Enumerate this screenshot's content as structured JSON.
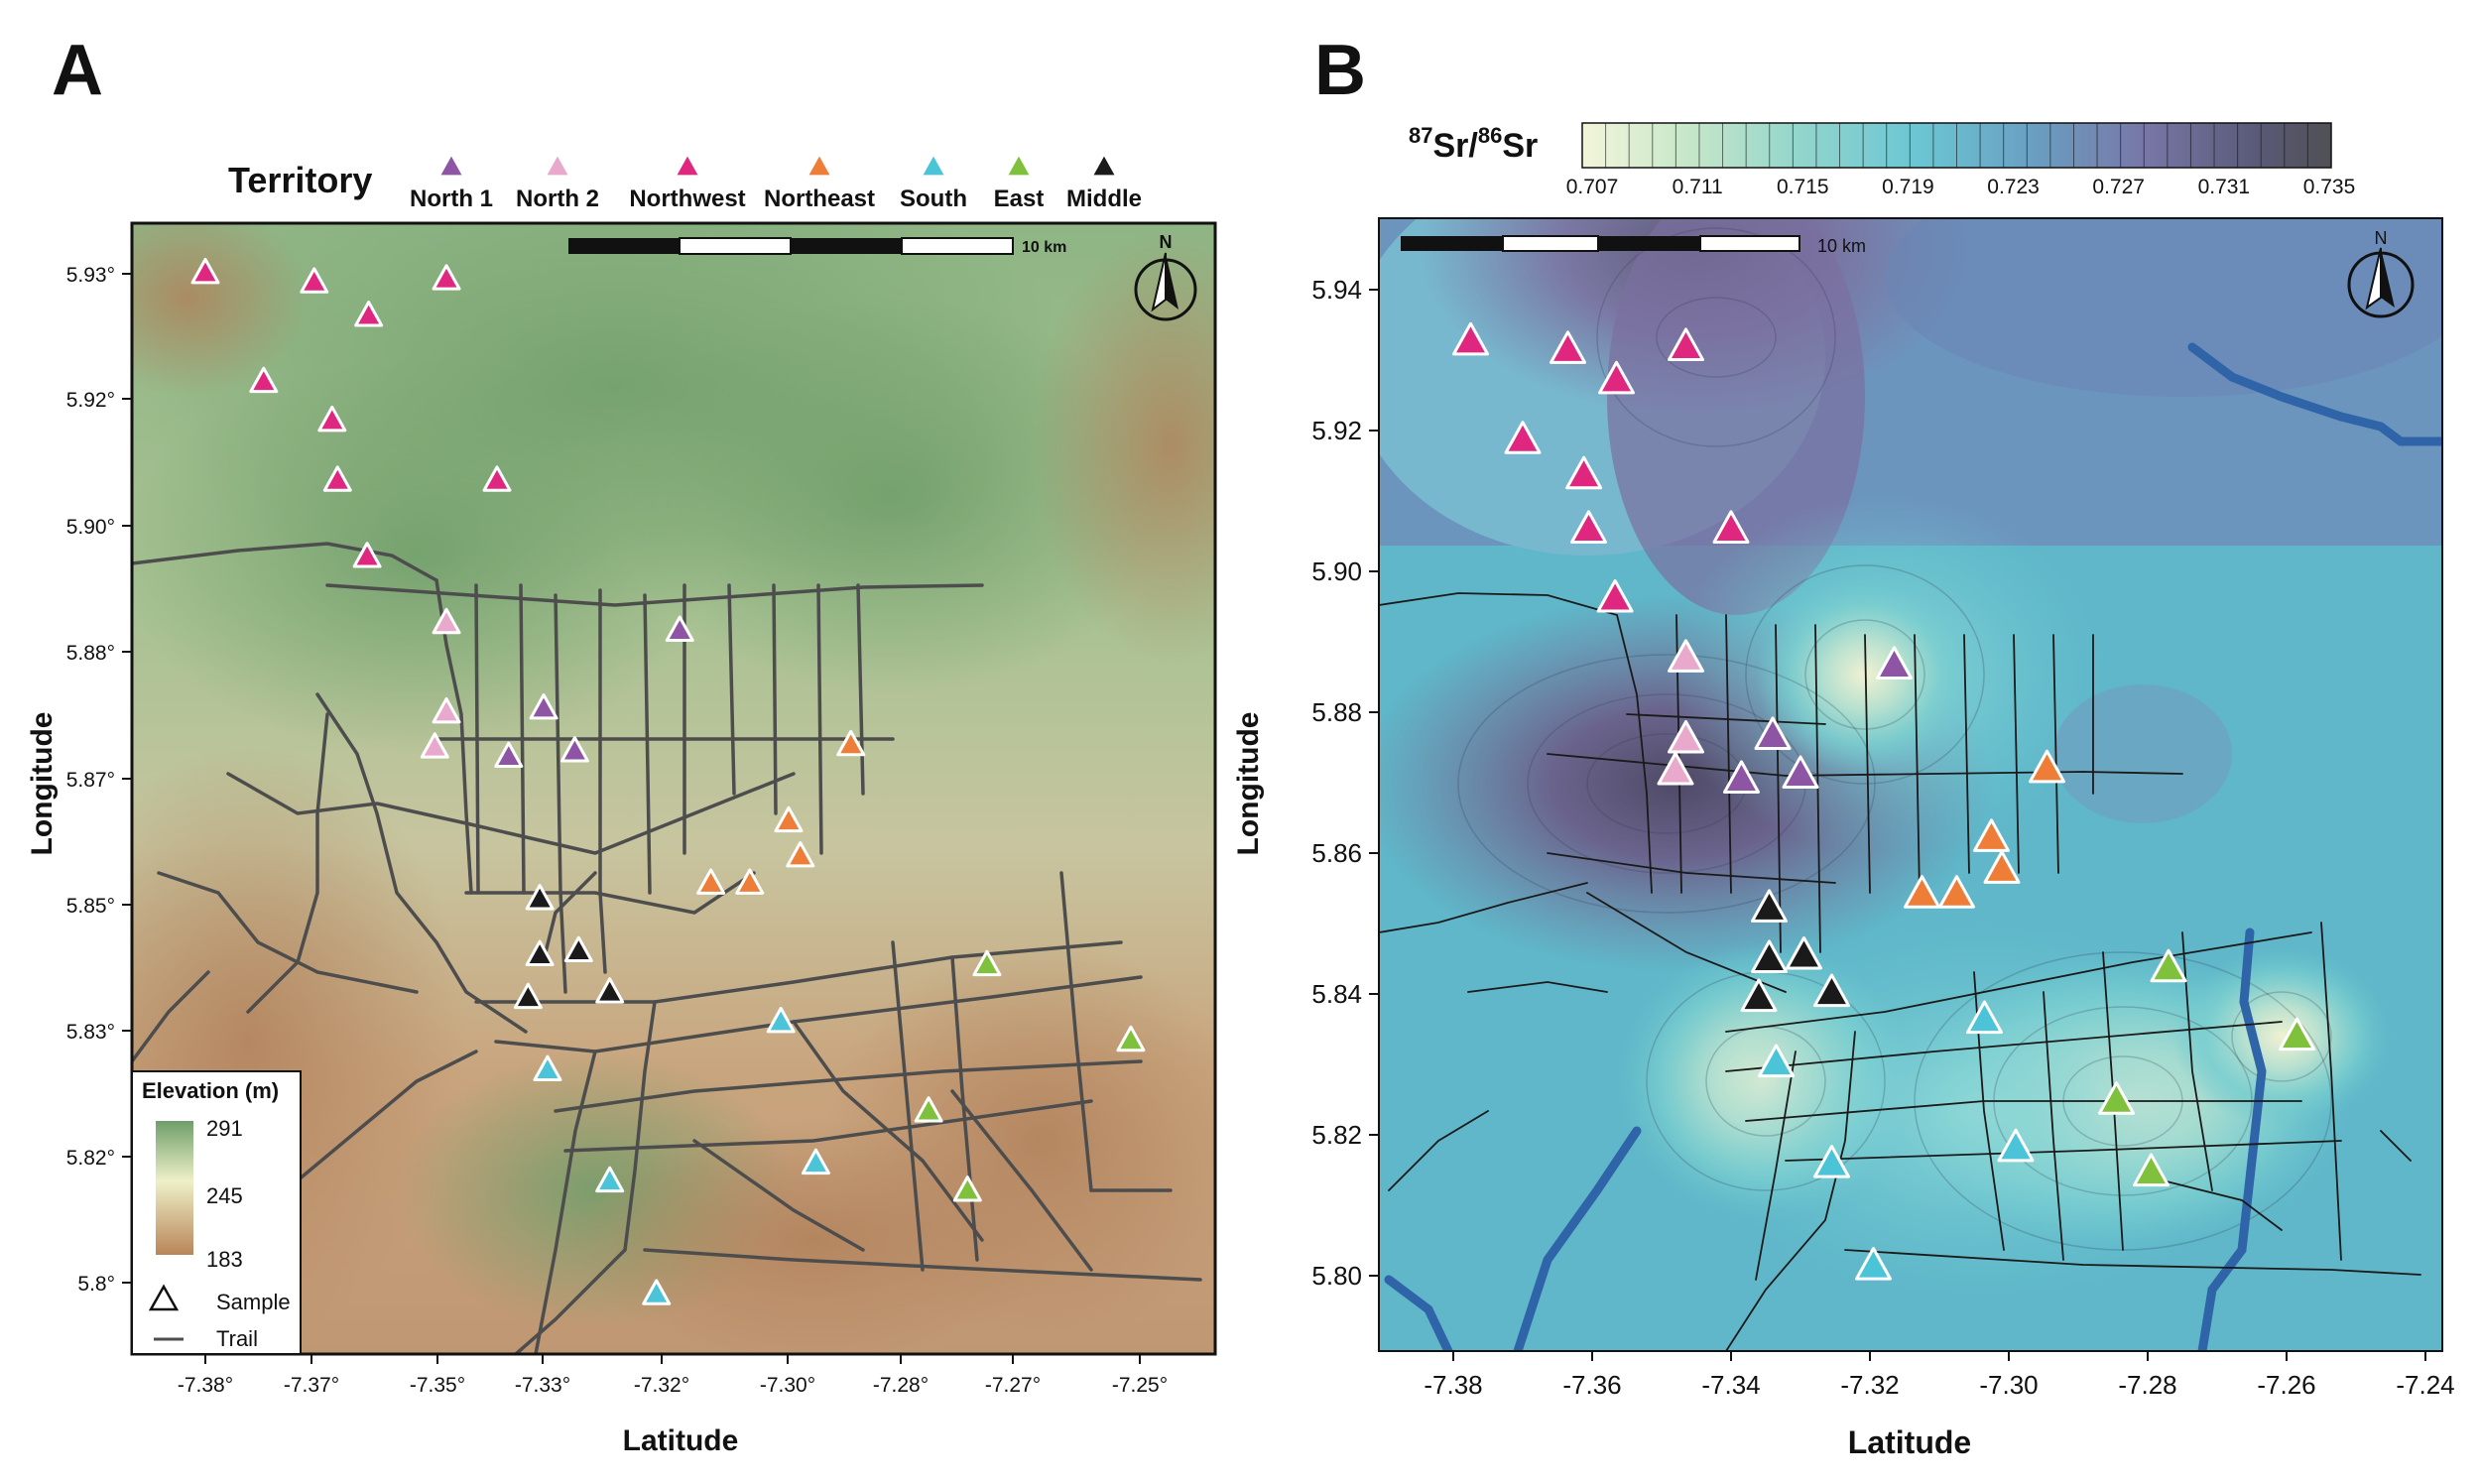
{
  "panel_a": {
    "letter": "A",
    "legend_title": "Territory",
    "territories": [
      {
        "name": "North 1",
        "color": "#8e55a5"
      },
      {
        "name": "North 2",
        "color": "#e8a9cc"
      },
      {
        "name": "Northwest",
        "color": "#e0277f"
      },
      {
        "name": "Northeast",
        "color": "#ee7d38"
      },
      {
        "name": "South",
        "color": "#4cc4d8"
      },
      {
        "name": "East",
        "color": "#7fc03d"
      },
      {
        "name": "Middle",
        "color": "#1a1a1a"
      }
    ],
    "x_ticks": [
      "-7.38°",
      "-7.37°",
      "-7.35°",
      "-7.33°",
      "-7.32°",
      "-7.30°",
      "-7.28°",
      "-7.27°",
      "-7.25°"
    ],
    "y_ticks": [
      "5.93°",
      "5.92°",
      "5.90°",
      "5.88°",
      "5.87°",
      "5.85°",
      "5.83°",
      "5.82°",
      "5.8°"
    ],
    "x_label": "Latitude",
    "y_label": "Longitude",
    "scale_label": "10 km",
    "north_label": "N",
    "elevation": {
      "title": "Elevation (m)",
      "max": "291",
      "mid": "245",
      "min": "183"
    },
    "sample_label": "Sample",
    "trail_label": "Trail"
  },
  "panel_b": {
    "letter": "B",
    "colorbar_title_sup1": "87",
    "colorbar_title_a": "Sr/",
    "colorbar_title_sup2": "86",
    "colorbar_title_b": "Sr",
    "colorbar_ticks": [
      "0.707",
      "0.711",
      "0.715",
      "0.719",
      "0.723",
      "0.727",
      "0.731",
      "0.735"
    ],
    "x_ticks": [
      "-7.38",
      "-7.36",
      "-7.34",
      "-7.32",
      "-7.30",
      "-7.28",
      "-7.26",
      "-7.24"
    ],
    "y_ticks": [
      "5.94",
      "5.92",
      "5.90",
      "5.88",
      "5.86",
      "5.84",
      "5.82",
      "5.80"
    ],
    "x_label": "Latitude",
    "y_label": "Longitude",
    "scale_label": "10 km",
    "north_label": "N"
  },
  "samples": [
    {
      "t": 2,
      "lon": -7.3775,
      "lat": 5.9325
    },
    {
      "t": 2,
      "lon": -7.3635,
      "lat": 5.9313
    },
    {
      "t": 2,
      "lon": -7.3465,
      "lat": 5.9317
    },
    {
      "t": 2,
      "lon": -7.3565,
      "lat": 5.927
    },
    {
      "t": 2,
      "lon": -7.37,
      "lat": 5.9185
    },
    {
      "t": 2,
      "lon": -7.3612,
      "lat": 5.9135
    },
    {
      "t": 2,
      "lon": -7.3605,
      "lat": 5.9058
    },
    {
      "t": 2,
      "lon": -7.34,
      "lat": 5.9058
    },
    {
      "t": 2,
      "lon": -7.3567,
      "lat": 5.896
    },
    {
      "t": 1,
      "lon": -7.3465,
      "lat": 5.8875
    },
    {
      "t": 0,
      "lon": -7.3165,
      "lat": 5.8865
    },
    {
      "t": 1,
      "lon": -7.3465,
      "lat": 5.876
    },
    {
      "t": 1,
      "lon": -7.348,
      "lat": 5.8715
    },
    {
      "t": 0,
      "lon": -7.334,
      "lat": 5.8765
    },
    {
      "t": 0,
      "lon": -7.3385,
      "lat": 5.8703
    },
    {
      "t": 0,
      "lon": -7.33,
      "lat": 5.871
    },
    {
      "t": 3,
      "lon": -7.2945,
      "lat": 5.8718
    },
    {
      "t": 3,
      "lon": -7.3025,
      "lat": 5.862
    },
    {
      "t": 3,
      "lon": -7.301,
      "lat": 5.8575
    },
    {
      "t": 3,
      "lon": -7.3125,
      "lat": 5.854
    },
    {
      "t": 3,
      "lon": -7.3075,
      "lat": 5.854
    },
    {
      "t": 6,
      "lon": -7.3345,
      "lat": 5.852
    },
    {
      "t": 6,
      "lon": -7.3345,
      "lat": 5.8448
    },
    {
      "t": 6,
      "lon": -7.3295,
      "lat": 5.8453
    },
    {
      "t": 6,
      "lon": -7.336,
      "lat": 5.8393
    },
    {
      "t": 6,
      "lon": -7.3255,
      "lat": 5.84
    },
    {
      "t": 4,
      "lon": -7.3335,
      "lat": 5.83
    },
    {
      "t": 4,
      "lon": -7.3035,
      "lat": 5.8362
    },
    {
      "t": 4,
      "lon": -7.299,
      "lat": 5.818
    },
    {
      "t": 4,
      "lon": -7.3255,
      "lat": 5.8157
    },
    {
      "t": 4,
      "lon": -7.3195,
      "lat": 5.8012
    },
    {
      "t": 5,
      "lon": -7.277,
      "lat": 5.8435
    },
    {
      "t": 5,
      "lon": -7.2585,
      "lat": 5.8338
    },
    {
      "t": 5,
      "lon": -7.2845,
      "lat": 5.8247
    },
    {
      "t": 5,
      "lon": -7.2795,
      "lat": 5.8145
    }
  ]
}
